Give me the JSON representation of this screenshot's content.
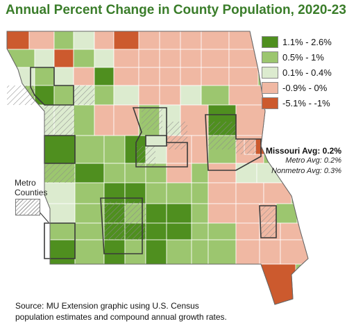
{
  "title": "Annual Percent Change in County Population, 2020-23",
  "legend": [
    {
      "label": "1.1% - 2.6%",
      "color": "#4f8f1f"
    },
    {
      "label": "0.5% - 1%",
      "color": "#9cc66f"
    },
    {
      "label": "0.1% - 0.4%",
      "color": "#dcebcf"
    },
    {
      "label": "-0.9% - 0%",
      "color": "#f0b8a3"
    },
    {
      "label": "-5.1% - -1%",
      "color": "#cc5a2e"
    }
  ],
  "averages": {
    "missouri": "Missouri Avg: 0.2%",
    "metro": "Metro Avg: 0.2%",
    "nonmetro": "Nonmetro Avg: 0.3%"
  },
  "metro_counties_label_line1": "Metro",
  "metro_counties_label_line2": "Counties",
  "source_line1": "Source: MU Extension graphic using U.S. Census",
  "source_line2": "population estimates and compound annual growth rates."
}
